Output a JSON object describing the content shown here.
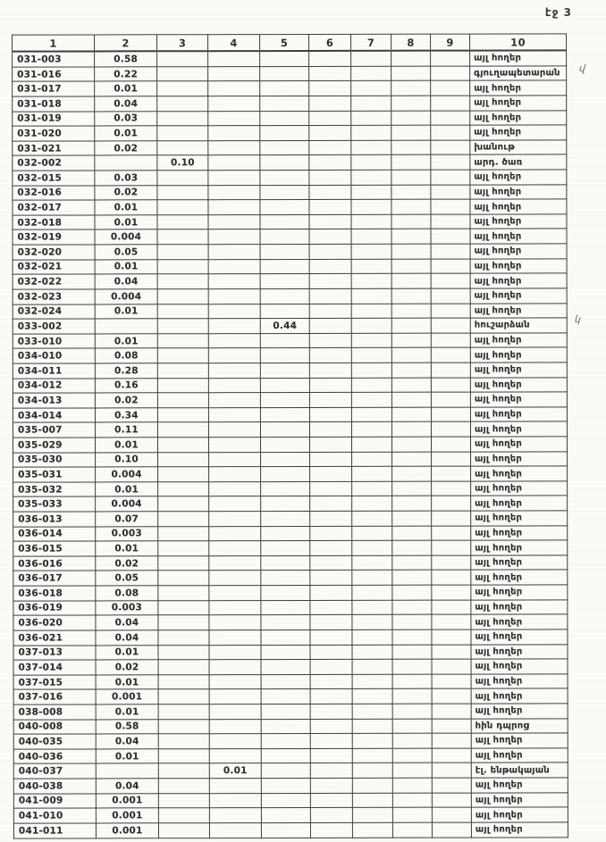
{
  "page_label": "էջ 3",
  "colors": {
    "paper": "#fbfbf8",
    "ink": "#303030",
    "grid": "#3d3d3d"
  },
  "annotations": [
    {
      "text": "վ"
    },
    {
      "text": "կ"
    }
  ],
  "table": {
    "columns": [
      "1",
      "2",
      "3",
      "4",
      "5",
      "6",
      "7",
      "8",
      "9",
      "10"
    ],
    "rows": [
      {
        "cells": [
          "031-003",
          "0.58",
          "",
          "",
          "",
          "",
          "",
          "",
          "",
          "այլ հողեր"
        ]
      },
      {
        "cells": [
          "031-016",
          "0.22",
          "",
          "",
          "",
          "",
          "",
          "",
          "",
          "գյուղապետարան"
        ]
      },
      {
        "cells": [
          "031-017",
          "0.01",
          "",
          "",
          "",
          "",
          "",
          "",
          "",
          "այլ հողեր"
        ]
      },
      {
        "cells": [
          "031-018",
          "0.04",
          "",
          "",
          "",
          "",
          "",
          "",
          "",
          "այլ հողեր"
        ]
      },
      {
        "cells": [
          "031-019",
          "0.03",
          "",
          "",
          "",
          "",
          "",
          "",
          "",
          "այլ հողեր"
        ]
      },
      {
        "cells": [
          "031-020",
          "0.01",
          "",
          "",
          "",
          "",
          "",
          "",
          "",
          "այլ հողեր"
        ]
      },
      {
        "cells": [
          "031-021",
          "0.02",
          "",
          "",
          "",
          "",
          "",
          "",
          "",
          "խանութ"
        ]
      },
      {
        "cells": [
          "032-002",
          "",
          "0.10",
          "",
          "",
          "",
          "",
          "",
          "",
          "արդ. ծառ"
        ]
      },
      {
        "cells": [
          "032-015",
          "0.03",
          "",
          "",
          "",
          "",
          "",
          "",
          "",
          "այլ հողեր"
        ]
      },
      {
        "cells": [
          "032-016",
          "0.02",
          "",
          "",
          "",
          "",
          "",
          "",
          "",
          "այլ հողեր"
        ]
      },
      {
        "cells": [
          "032-017",
          "0.01",
          "",
          "",
          "",
          "",
          "",
          "",
          "",
          "այլ հողեր"
        ]
      },
      {
        "cells": [
          "032-018",
          "0.01",
          "",
          "",
          "",
          "",
          "",
          "",
          "",
          "այլ հողեր"
        ]
      },
      {
        "cells": [
          "032-019",
          "0.004",
          "",
          "",
          "",
          "",
          "",
          "",
          "",
          "այլ հողեր"
        ]
      },
      {
        "cells": [
          "032-020",
          "0.05",
          "",
          "",
          "",
          "",
          "",
          "",
          "",
          "այլ հողեր"
        ]
      },
      {
        "cells": [
          "032-021",
          "0.01",
          "",
          "",
          "",
          "",
          "",
          "",
          "",
          "այլ հողեր"
        ]
      },
      {
        "cells": [
          "032-022",
          "0.04",
          "",
          "",
          "",
          "",
          "",
          "",
          "",
          "այլ հողեր"
        ]
      },
      {
        "cells": [
          "032-023",
          "0.004",
          "",
          "",
          "",
          "",
          "",
          "",
          "",
          "այլ հողեր"
        ]
      },
      {
        "cells": [
          "032-024",
          "0.01",
          "",
          "",
          "",
          "",
          "",
          "",
          "",
          "այլ հողեր"
        ]
      },
      {
        "cells": [
          "033-002",
          "",
          "",
          "",
          "0.44",
          "",
          "",
          "",
          "",
          "հուշարձան"
        ]
      },
      {
        "cells": [
          "033-010",
          "0.01",
          "",
          "",
          "",
          "",
          "",
          "",
          "",
          "այլ հողեր"
        ]
      },
      {
        "cells": [
          "034-010",
          "0.08",
          "",
          "",
          "",
          "",
          "",
          "",
          "",
          "այլ հողեր"
        ]
      },
      {
        "cells": [
          "034-011",
          "0.28",
          "",
          "",
          "",
          "",
          "",
          "",
          "",
          "այլ հողեր"
        ]
      },
      {
        "cells": [
          "034-012",
          "0.16",
          "",
          "",
          "",
          "",
          "",
          "",
          "",
          "այլ հողեր"
        ]
      },
      {
        "cells": [
          "034-013",
          "0.02",
          "",
          "",
          "",
          "",
          "",
          "",
          "",
          "այլ հողեր"
        ]
      },
      {
        "cells": [
          "034-014",
          "0.34",
          "",
          "",
          "",
          "",
          "",
          "",
          "",
          "այլ հողեր"
        ]
      },
      {
        "cells": [
          "035-007",
          "0.11",
          "",
          "",
          "",
          "",
          "",
          "",
          "",
          "այլ հողեր"
        ]
      },
      {
        "cells": [
          "035-029",
          "0.01",
          "",
          "",
          "",
          "",
          "",
          "",
          "",
          "այլ հողեր"
        ]
      },
      {
        "cells": [
          "035-030",
          "0.10",
          "",
          "",
          "",
          "",
          "",
          "",
          "",
          "այլ հողեր"
        ]
      },
      {
        "cells": [
          "035-031",
          "0.004",
          "",
          "",
          "",
          "",
          "",
          "",
          "",
          "այլ հողեր"
        ]
      },
      {
        "cells": [
          "035-032",
          "0.01",
          "",
          "",
          "",
          "",
          "",
          "",
          "",
          "այլ հողեր"
        ]
      },
      {
        "cells": [
          "035-033",
          "0.004",
          "",
          "",
          "",
          "",
          "",
          "",
          "",
          "այլ հողեր"
        ]
      },
      {
        "cells": [
          "036-013",
          "0.07",
          "",
          "",
          "",
          "",
          "",
          "",
          "",
          "այլ հողեր"
        ]
      },
      {
        "cells": [
          "036-014",
          "0.003",
          "",
          "",
          "",
          "",
          "",
          "",
          "",
          "այլ հողեր"
        ]
      },
      {
        "cells": [
          "036-015",
          "0.01",
          "",
          "",
          "",
          "",
          "",
          "",
          "",
          "այլ հողեր"
        ]
      },
      {
        "cells": [
          "036-016",
          "0.02",
          "",
          "",
          "",
          "",
          "",
          "",
          "",
          "այլ հողեր"
        ]
      },
      {
        "cells": [
          "036-017",
          "0.05",
          "",
          "",
          "",
          "",
          "",
          "",
          "",
          "այլ հողեր"
        ]
      },
      {
        "cells": [
          "036-018",
          "0.08",
          "",
          "",
          "",
          "",
          "",
          "",
          "",
          "այլ հողեր"
        ]
      },
      {
        "cells": [
          "036-019",
          "0.003",
          "",
          "",
          "",
          "",
          "",
          "",
          "",
          "այլ հողեր"
        ]
      },
      {
        "cells": [
          "036-020",
          "0.04",
          "",
          "",
          "",
          "",
          "",
          "",
          "",
          "այլ հողեր"
        ]
      },
      {
        "cells": [
          "036-021",
          "0.04",
          "",
          "",
          "",
          "",
          "",
          "",
          "",
          "այլ հողեր"
        ]
      },
      {
        "cells": [
          "037-013",
          "0.01",
          "",
          "",
          "",
          "",
          "",
          "",
          "",
          "այլ հողեր"
        ]
      },
      {
        "cells": [
          "037-014",
          "0.02",
          "",
          "",
          "",
          "",
          "",
          "",
          "",
          "այլ հողեր"
        ]
      },
      {
        "cells": [
          "037-015",
          "0.01",
          "",
          "",
          "",
          "",
          "",
          "",
          "",
          "այլ հողեր"
        ]
      },
      {
        "cells": [
          "037-016",
          "0.001",
          "",
          "",
          "",
          "",
          "",
          "",
          "",
          "այլ հողեր"
        ]
      },
      {
        "cells": [
          "038-008",
          "0.01",
          "",
          "",
          "",
          "",
          "",
          "",
          "",
          "այլ հողեր"
        ]
      },
      {
        "cells": [
          "040-008",
          "0.58",
          "",
          "",
          "",
          "",
          "",
          "",
          "",
          "հին դպրոց"
        ]
      },
      {
        "cells": [
          "040-035",
          "0.04",
          "",
          "",
          "",
          "",
          "",
          "",
          "",
          "այլ հողեր"
        ]
      },
      {
        "cells": [
          "040-036",
          "0.01",
          "",
          "",
          "",
          "",
          "",
          "",
          "",
          "այլ հողեր"
        ]
      },
      {
        "cells": [
          "040-037",
          "",
          "",
          "0.01",
          "",
          "",
          "",
          "",
          "",
          "էլ. ենթակայան"
        ]
      },
      {
        "cells": [
          "040-038",
          "0.04",
          "",
          "",
          "",
          "",
          "",
          "",
          "",
          "այլ հողեր"
        ]
      },
      {
        "cells": [
          "041-009",
          "0.001",
          "",
          "",
          "",
          "",
          "",
          "",
          "",
          "այլ հողեր"
        ]
      },
      {
        "cells": [
          "041-010",
          "0.001",
          "",
          "",
          "",
          "",
          "",
          "",
          "",
          "այլ հողեր"
        ]
      },
      {
        "cells": [
          "041-011",
          "0.001",
          "",
          "",
          "",
          "",
          "",
          "",
          "",
          "այլ հողեր"
        ]
      }
    ]
  }
}
